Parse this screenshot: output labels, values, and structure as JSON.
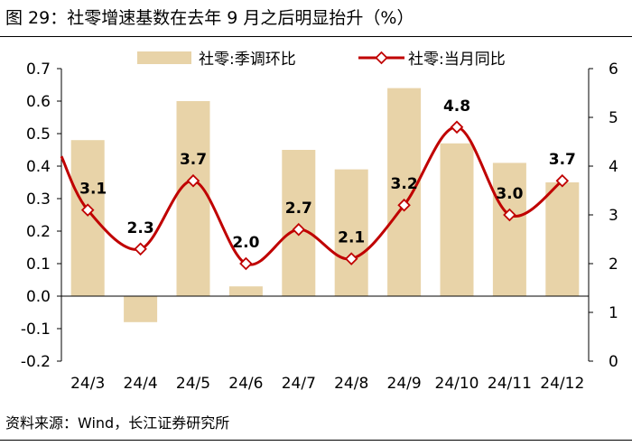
{
  "title": "图 29：社零增速基数在去年 9 月之后明显抬升（%）",
  "source": "资料来源：Wind，长江证券研究所",
  "colors": {
    "bar": "#e8d3a8",
    "line": "#c00000",
    "marker_fill": "#ffffff",
    "axis": "#000000"
  },
  "chart_data": {
    "type": "bar+line",
    "categories": [
      "24/3",
      "24/4",
      "24/5",
      "24/6",
      "24/7",
      "24/8",
      "24/9",
      "24/10",
      "24/11",
      "24/12"
    ],
    "series": [
      {
        "name": "社零:季调环比",
        "type": "bar",
        "axis": "left",
        "values": [
          0.48,
          -0.08,
          0.6,
          0.03,
          0.45,
          0.39,
          0.64,
          0.47,
          0.41,
          0.35
        ]
      },
      {
        "name": "社零:当月同比",
        "type": "line",
        "axis": "right",
        "smooth": true,
        "values": [
          3.1,
          2.3,
          3.7,
          2.0,
          2.7,
          2.1,
          3.2,
          4.8,
          3.0,
          3.7
        ],
        "data_labels": [
          "3.1",
          "2.3",
          "3.7",
          "2.0",
          "2.7",
          "2.1",
          "3.2",
          "4.8",
          "3.0",
          "3.7"
        ],
        "line_start_value": 4.2
      }
    ],
    "y_left": {
      "min": -0.2,
      "max": 0.7,
      "step": 0.1,
      "tick_labels": [
        "-0.2",
        "-0.1",
        "0.0",
        "0.1",
        "0.2",
        "0.3",
        "0.4",
        "0.5",
        "0.6",
        "0.7"
      ]
    },
    "y_right": {
      "min": 0,
      "max": 6,
      "step": 1,
      "tick_labels": [
        "0",
        "1",
        "2",
        "3",
        "4",
        "5",
        "6"
      ]
    },
    "legend": {
      "placement": "top"
    },
    "grid": false
  }
}
